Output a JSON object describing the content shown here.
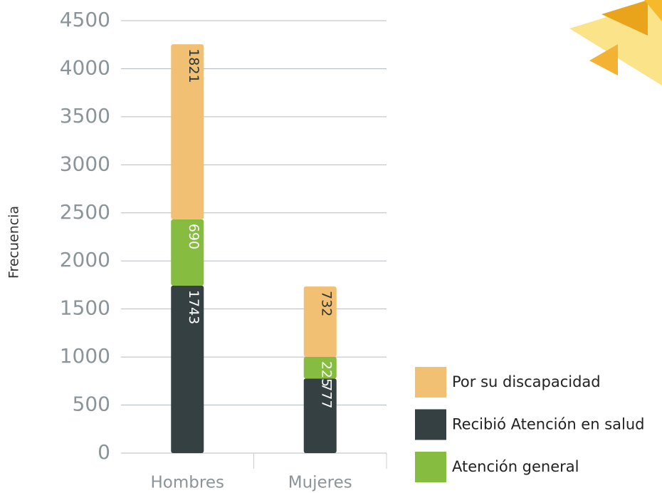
{
  "chart_data": {
    "type": "stacked_bar",
    "y_label": "Frecuencia",
    "categories": [
      "Hombres",
      "Mujeres"
    ],
    "series": [
      {
        "name": "Recibió Atención en salud",
        "color": "#344041",
        "label_color": "#ffffff",
        "values": [
          1743,
          777
        ]
      },
      {
        "name": "Atención general",
        "color": "#86bc3f",
        "label_color": "#ffffff",
        "values": [
          690,
          225
        ]
      },
      {
        "name": "Por su discapacidad",
        "color": "#f2c072",
        "label_color": "#2b3536",
        "values": [
          1821,
          732
        ]
      }
    ],
    "legend_order": [
      2,
      0,
      1
    ],
    "ylim": [
      0,
      4500
    ],
    "yticks": [
      0,
      500,
      1000,
      1500,
      2000,
      2500,
      3000,
      3500,
      4000,
      4500
    ],
    "grid": true
  }
}
